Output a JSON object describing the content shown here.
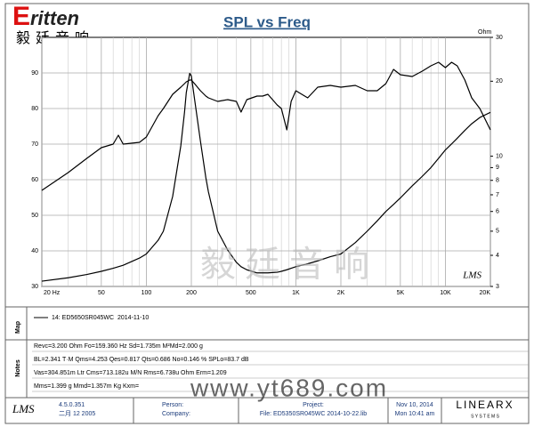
{
  "chart_data": {
    "type": "line",
    "title": "SPL vs Freq",
    "annotation": "LMS",
    "y2label": "Ohm",
    "xscale": "log",
    "y2scale": "log",
    "grid": true,
    "xlim": [
      20,
      20000
    ],
    "ylim": [
      30,
      100
    ],
    "y2lim": [
      3,
      30
    ],
    "xticks": [
      {
        "value": 20,
        "label": "20 Hz"
      },
      50,
      100,
      200,
      500,
      {
        "value": 1000,
        "label": "1K"
      },
      {
        "value": 2000,
        "label": "2K"
      },
      {
        "value": 5000,
        "label": "5K"
      },
      {
        "value": 10000,
        "label": "10K"
      },
      {
        "value": 20000,
        "label": "20K"
      }
    ],
    "xminorticks": [
      30,
      40,
      60,
      70,
      80,
      90,
      300,
      400,
      600,
      700,
      800,
      900,
      3000,
      4000,
      6000,
      7000,
      8000,
      9000
    ],
    "yticks": [
      30,
      40,
      50,
      60,
      70,
      80,
      90
    ],
    "y2ticks": [
      3,
      4,
      5,
      6,
      7,
      8,
      9,
      10,
      20,
      30
    ],
    "x": [
      20,
      30,
      40,
      50,
      60,
      65,
      70,
      90,
      100,
      120,
      130,
      150,
      170,
      180,
      185,
      195,
      200,
      210,
      230,
      250,
      260,
      300,
      350,
      400,
      430,
      470,
      550,
      600,
      650,
      750,
      800,
      870,
      930,
      1000,
      1200,
      1400,
      1700,
      2000,
      2500,
      3000,
      3500,
      4000,
      4500,
      5000,
      6000,
      7000,
      8000,
      9000,
      10000,
      11000,
      12000,
      13500,
      15000,
      17000,
      20000
    ],
    "series": [
      {
        "name": "14: ED5650SR045WC",
        "color": "#000000",
        "values": [
          57,
          62,
          66,
          69,
          70,
          72.5,
          70,
          70.5,
          72,
          78,
          80,
          84,
          86,
          87,
          87.5,
          88,
          88,
          87,
          85,
          83.5,
          83,
          82,
          82.5,
          82,
          79,
          82.5,
          83.5,
          83.5,
          84,
          81,
          80,
          74,
          82,
          85,
          83,
          86,
          86.5,
          86,
          86.5,
          85,
          85,
          87,
          91,
          89.5,
          89,
          90.5,
          92,
          93,
          91.5,
          93,
          92,
          88,
          83,
          80,
          74
        ]
      },
      {
        "color": "#000000",
        "axis": "y2",
        "values": [
          3.15,
          3.25,
          3.35,
          3.45,
          3.55,
          3.6,
          3.65,
          3.9,
          4.05,
          4.6,
          5,
          6.9,
          11,
          15,
          18,
          21.5,
          21,
          17,
          11.5,
          8.2,
          7.2,
          5,
          4.2,
          3.75,
          3.6,
          3.5,
          3.4,
          3.4,
          3.4,
          3.42,
          3.45,
          3.5,
          3.55,
          3.6,
          3.7,
          3.8,
          3.95,
          4.05,
          4.5,
          5,
          5.5,
          6,
          6.4,
          6.8,
          7.6,
          8.3,
          9,
          9.8,
          10.6,
          11.2,
          11.8,
          12.7,
          13.5,
          14.3,
          15
        ]
      }
    ]
  },
  "header": {
    "logo": "ritten",
    "brand": "毅廷音响"
  },
  "watermark": {
    "brand": "毅廷音响",
    "url": "www.yt689.com"
  },
  "map": {
    "label": "Map",
    "date": "2014-11-10"
  },
  "notes": {
    "label": "Notes",
    "lines": [
      "Revc=3.200 Ohm  Fo=159.360 Hz  Sd=1.735m M²Md=2.000 g",
      "BL=2.341 T·M  Qms=4.253  Qes=0.817  Qts=0.686  No=0.146 %  SPLo=83.7 dB",
      "Vas=304.851m Ltr  Cms=713.182u M/N  Rms=6.738u Ohm  Erm=1.209",
      "Mms=1.399 g  Mmd=1.357m Kg  Kxm="
    ]
  },
  "footer": {
    "app": "LMS",
    "version": "4.5.0.351",
    "build_date": "二月 12 2005",
    "person": "Person:",
    "company": "Company:",
    "project": "Project:",
    "file": "File: ED5350SR045WC   2014-10-22.lib",
    "date": "Nov 10, 2014",
    "time": "Mon 10:41 am",
    "vendor": "LINEARX",
    "vendor_sub": "S Y S T E M S"
  }
}
